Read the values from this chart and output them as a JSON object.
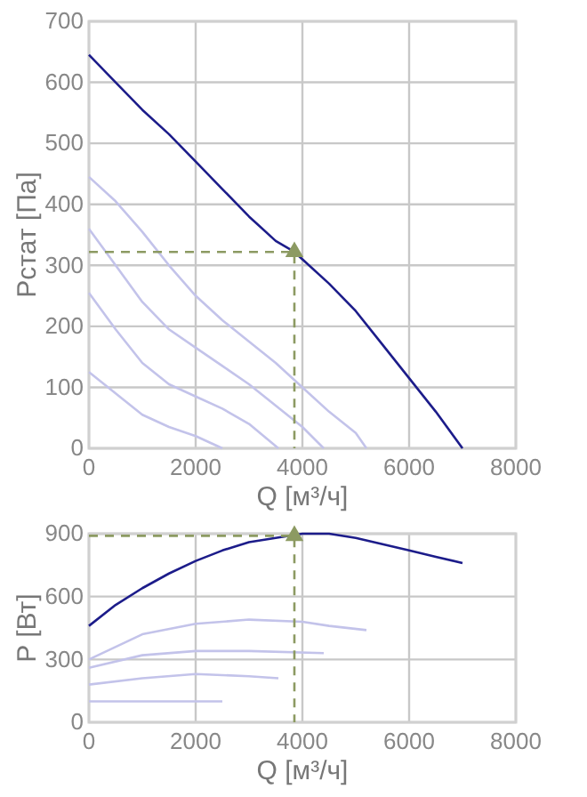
{
  "chart_data": [
    {
      "type": "line",
      "xlabel": "Q [м³/ч]",
      "ylabel": "Pстат [Па]",
      "xlim": [
        0,
        8000
      ],
      "ylim": [
        0,
        700
      ],
      "xticks": [
        0,
        2000,
        4000,
        6000,
        8000
      ],
      "yticks": [
        0,
        100,
        200,
        300,
        400,
        500,
        600,
        700
      ],
      "grid": true,
      "series": [
        {
          "color": "#c3c3ea",
          "x": [
            0,
            500,
            1000,
            1500,
            2000,
            2500
          ],
          "values": [
            125,
            90,
            55,
            35,
            20,
            0
          ]
        },
        {
          "color": "#c3c3ea",
          "x": [
            0,
            500,
            1000,
            1500,
            2000,
            2500,
            3000,
            3550
          ],
          "values": [
            255,
            195,
            140,
            105,
            85,
            65,
            40,
            0
          ]
        },
        {
          "color": "#c3c3ea",
          "x": [
            0,
            500,
            1000,
            1500,
            2000,
            2500,
            3000,
            3500,
            4000,
            4400
          ],
          "values": [
            360,
            300,
            240,
            195,
            165,
            135,
            105,
            70,
            35,
            0
          ]
        },
        {
          "color": "#c3c3ea",
          "x": [
            0,
            500,
            1000,
            1500,
            2000,
            2500,
            3000,
            3500,
            4000,
            4500,
            5000,
            5200
          ],
          "values": [
            445,
            405,
            355,
            300,
            250,
            210,
            175,
            140,
            100,
            60,
            25,
            0
          ]
        },
        {
          "color": "#1c1c8a",
          "x": [
            0,
            500,
            1000,
            1500,
            2000,
            2500,
            3000,
            3500,
            3850,
            4000,
            4500,
            5000,
            5500,
            6000,
            6500,
            7000
          ],
          "values": [
            645,
            600,
            555,
            515,
            470,
            425,
            380,
            340,
            322,
            310,
            270,
            225,
            170,
            115,
            60,
            0
          ]
        },
        {
          "type": "line",
          "line_style": "dashed",
          "color": "#8c9a62",
          "x": [
            0,
            3850,
            3850
          ],
          "values": [
            322,
            322,
            0
          ]
        },
        {
          "type": "scatter",
          "marker": "triangle",
          "color": "#8c9a62",
          "x": [
            3850
          ],
          "values": [
            322
          ]
        }
      ]
    },
    {
      "type": "line",
      "xlabel": "Q [м³/ч]",
      "ylabel": "P [Вт]",
      "xlim": [
        0,
        8000
      ],
      "ylim": [
        0,
        900
      ],
      "xticks": [
        0,
        2000,
        4000,
        6000,
        8000
      ],
      "yticks": [
        0,
        300,
        600,
        900
      ],
      "grid": true,
      "series": [
        {
          "color": "#c3c3ea",
          "x": [
            0,
            1000,
            2000,
            2500
          ],
          "values": [
            100,
            100,
            100,
            100
          ]
        },
        {
          "color": "#c3c3ea",
          "x": [
            0,
            1000,
            2000,
            3000,
            3550
          ],
          "values": [
            180,
            210,
            230,
            220,
            210
          ]
        },
        {
          "color": "#c3c3ea",
          "x": [
            0,
            1000,
            2000,
            3000,
            4400
          ],
          "values": [
            260,
            320,
            340,
            340,
            330
          ]
        },
        {
          "color": "#c3c3ea",
          "x": [
            0,
            1000,
            2000,
            3000,
            4000,
            4500,
            5200
          ],
          "values": [
            300,
            420,
            470,
            490,
            480,
            460,
            440
          ]
        },
        {
          "color": "#1c1c8a",
          "x": [
            0,
            500,
            1000,
            1500,
            2000,
            2500,
            3000,
            3500,
            4000,
            4500,
            5000,
            5500,
            6000,
            6500,
            7000
          ],
          "values": [
            460,
            560,
            640,
            710,
            770,
            820,
            860,
            880,
            900,
            900,
            880,
            850,
            820,
            790,
            760
          ]
        },
        {
          "type": "line",
          "line_style": "dashed",
          "color": "#8c9a62",
          "x": [
            0,
            3850,
            3850
          ],
          "values": [
            890,
            890,
            0
          ]
        },
        {
          "type": "scatter",
          "marker": "triangle",
          "color": "#8c9a62",
          "x": [
            3850
          ],
          "values": [
            890
          ]
        }
      ]
    }
  ]
}
